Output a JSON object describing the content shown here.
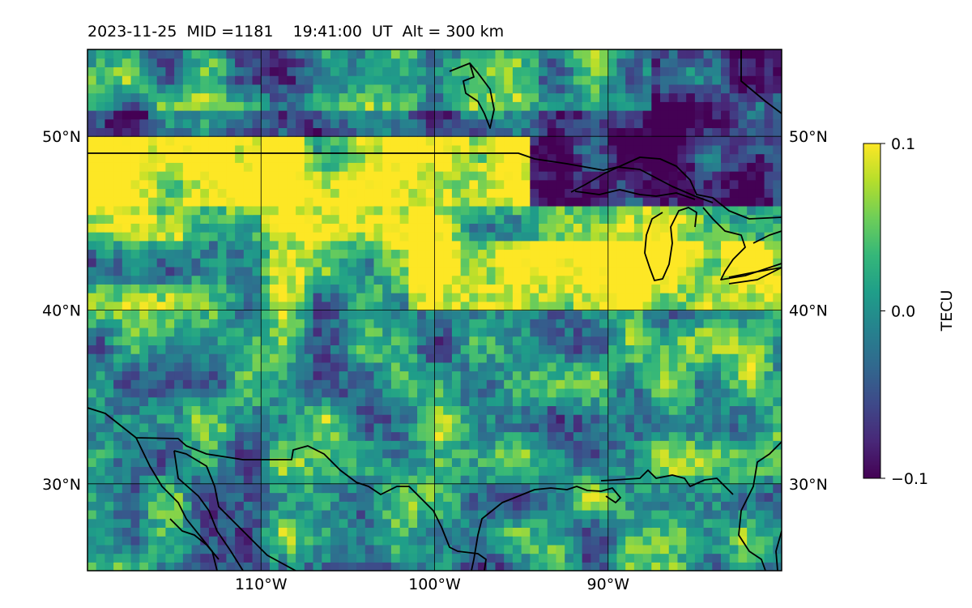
{
  "header": {
    "title": "2023-11-25  MID =1181    19:41:00  UT  Alt = 300 km"
  },
  "map": {
    "projection": "plate-carree",
    "extent": {
      "lon": [
        -120,
        -80
      ],
      "lat": [
        25,
        55
      ]
    },
    "lon_ticks": [
      {
        "value": -110,
        "label": "110°W"
      },
      {
        "value": -100,
        "label": "100°W"
      },
      {
        "value": -90,
        "label": "90°W"
      }
    ],
    "lat_ticks": [
      {
        "value": 30,
        "label": "30°N"
      },
      {
        "value": 40,
        "label": "40°N"
      },
      {
        "value": 50,
        "label": "50°N"
      }
    ],
    "gridlines": true,
    "coastlines": true,
    "borders": true
  },
  "field": {
    "quantity": "TEC perturbation",
    "units": "TECU",
    "cell_deg": 0.5,
    "vmin": -0.1,
    "vmax": 0.1,
    "colormap": "viridis",
    "pattern": [
      {
        "lat": [
          46,
          50
        ],
        "value": 0.1
      },
      {
        "lat": [
          40,
          44
        ],
        "value": 0.1
      },
      {
        "lat": [
          49,
          51
        ],
        "value": -0.1
      },
      {
        "lat": [
          25,
          39
        ],
        "value": 0.0
      }
    ]
  },
  "colorbar": {
    "label": "TECU",
    "ticks": [
      {
        "value": 0.1,
        "label": "0.1"
      },
      {
        "value": 0.0,
        "label": "0.0"
      },
      {
        "value": -0.1,
        "label": "−0.1"
      }
    ],
    "colors": [
      "#440154",
      "#482878",
      "#3e4989",
      "#31688e",
      "#26828e",
      "#1f9e89",
      "#35b779",
      "#6ece58",
      "#b5de2b",
      "#fde725"
    ]
  }
}
